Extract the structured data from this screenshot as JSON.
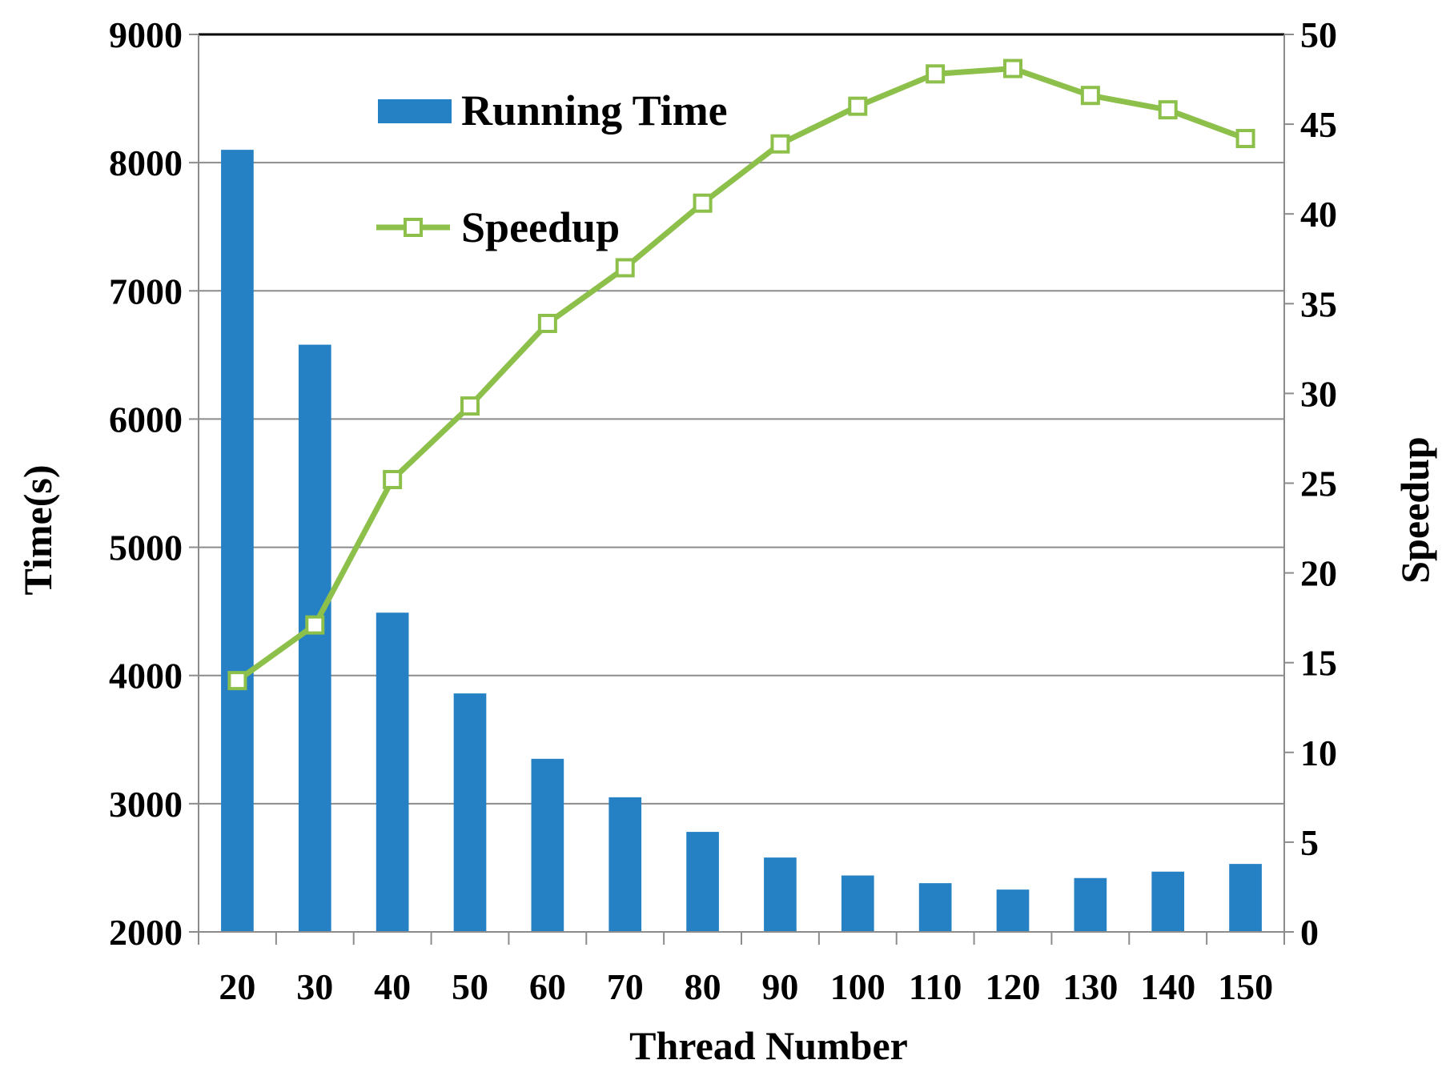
{
  "chart_data": {
    "type": "bar+line",
    "categories": [
      "20",
      "30",
      "40",
      "50",
      "60",
      "70",
      "80",
      "90",
      "100",
      "110",
      "120",
      "130",
      "140",
      "150"
    ],
    "series": [
      {
        "name": "Running Time",
        "type": "bar",
        "axis": "left",
        "color": "#2581C4",
        "values": [
          8100,
          6580,
          4490,
          3860,
          3350,
          3050,
          2780,
          2580,
          2440,
          2380,
          2330,
          2420,
          2470,
          2530
        ]
      },
      {
        "name": "Speedup",
        "type": "line",
        "axis": "right",
        "color": "#8DC04A",
        "marker": "open-square",
        "values": [
          14.0,
          17.1,
          25.2,
          29.3,
          33.9,
          37.0,
          40.6,
          43.9,
          46.0,
          47.8,
          48.1,
          46.6,
          45.8,
          44.2
        ]
      }
    ],
    "xlabel": "Thread Number",
    "ylabel": "Time(s)",
    "y2label": "Speedup",
    "ylim": [
      2000,
      9000
    ],
    "y2lim": [
      0,
      50
    ],
    "yticks": [
      "2000",
      "3000",
      "4000",
      "5000",
      "6000",
      "7000",
      "8000",
      "9000"
    ],
    "y2ticks": [
      "0",
      "5",
      "10",
      "15",
      "20",
      "25",
      "30",
      "35",
      "40",
      "45",
      "50"
    ],
    "grid": true,
    "legend": "top-left-inside",
    "legend_entries": [
      "Running Time",
      "Speedup"
    ]
  }
}
